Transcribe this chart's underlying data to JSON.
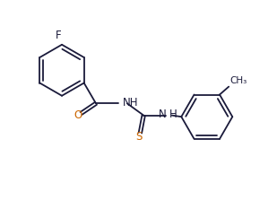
{
  "background_color": "#ffffff",
  "line_color": "#1a1a3a",
  "color_O": "#cc6600",
  "color_S": "#cc6600",
  "color_NH": "#1a1a3a",
  "color_F": "#1a1a3a",
  "color_CH3": "#1a1a3a",
  "figsize": [
    3.09,
    2.23
  ],
  "dpi": 100,
  "xlim": [
    0,
    9.5
  ],
  "ylim": [
    0,
    7.0
  ]
}
